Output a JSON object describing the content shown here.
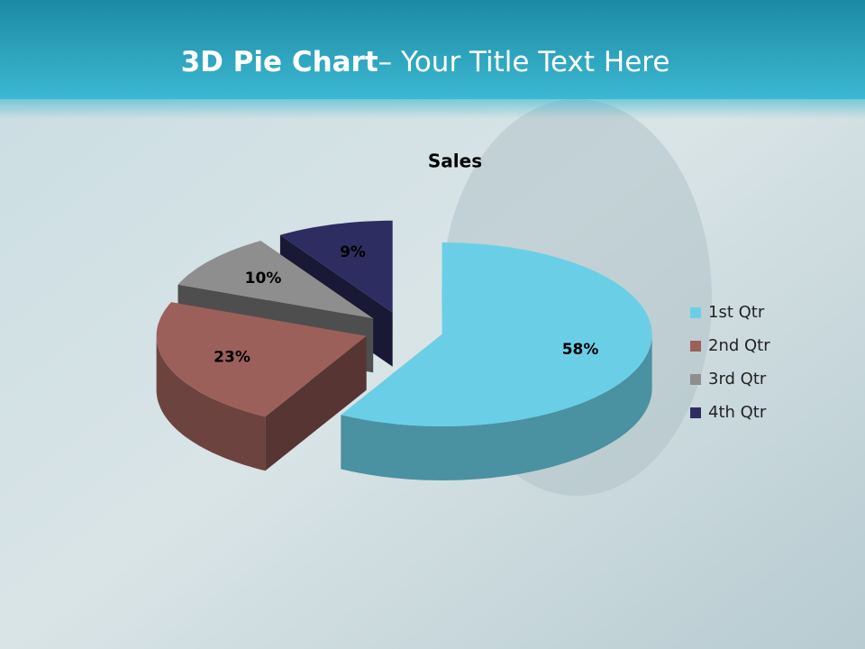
{
  "slide": {
    "title_bold": "3D Pie Chart",
    "title_rest": "– Your Title Text Here"
  },
  "chart_data": {
    "type": "pie",
    "title": "Sales",
    "categories": [
      "1st Qtr",
      "2nd Qtr",
      "3rd Qtr",
      "4th Qtr"
    ],
    "values": [
      58,
      23,
      10,
      9
    ],
    "value_labels": [
      "58%",
      "23%",
      "10%",
      "9%"
    ],
    "colors": [
      "#6acfe6",
      "#9c605b",
      "#8e8e8e",
      "#2e2d62"
    ],
    "legend": "right"
  }
}
